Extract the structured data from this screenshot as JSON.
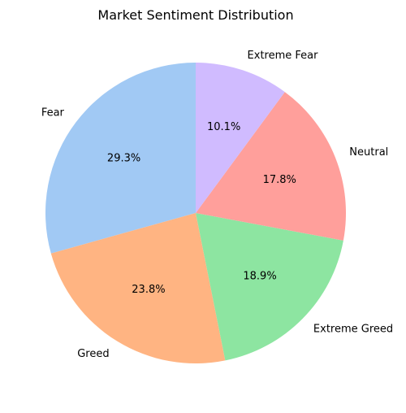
{
  "chart_data": {
    "type": "pie",
    "title": "Market Sentiment Distribution",
    "start_angle_deg": 90,
    "direction": "counterclockwise",
    "slices": [
      {
        "label": "Fear",
        "value": 29.3,
        "color": "#a1c9f4"
      },
      {
        "label": "Greed",
        "value": 23.8,
        "color": "#ffb482"
      },
      {
        "label": "Extreme Greed",
        "value": 18.9,
        "color": "#8de5a1"
      },
      {
        "label": "Neutral",
        "value": 17.8,
        "color": "#ff9f9b"
      },
      {
        "label": "Extreme Fear",
        "value": 10.1,
        "color": "#d0bbff"
      }
    ],
    "value_format": "percent_1dp"
  }
}
